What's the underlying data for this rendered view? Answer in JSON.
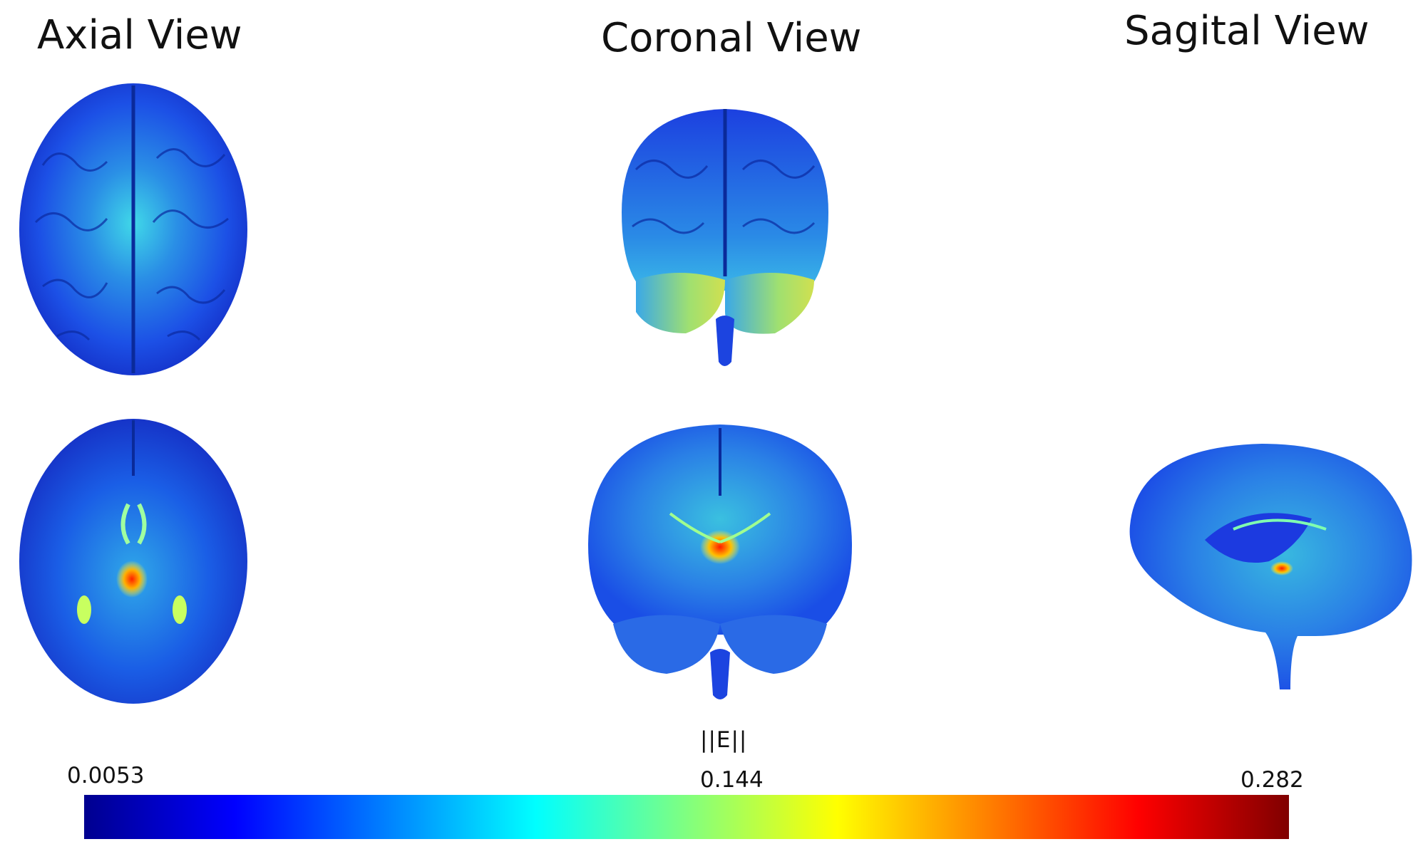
{
  "views": {
    "axial": "Axial View",
    "coronal": "Coronal View",
    "sagital": "Sagital View"
  },
  "colorbar": {
    "title": "||E||",
    "min": "0.0053",
    "mid": "0.144",
    "max": "0.282",
    "colormap": "jet",
    "colors": [
      "#00008f",
      "#0000ff",
      "#0080ff",
      "#00ffff",
      "#80ff80",
      "#ffff00",
      "#ff8000",
      "#ff0000",
      "#800000"
    ]
  }
}
